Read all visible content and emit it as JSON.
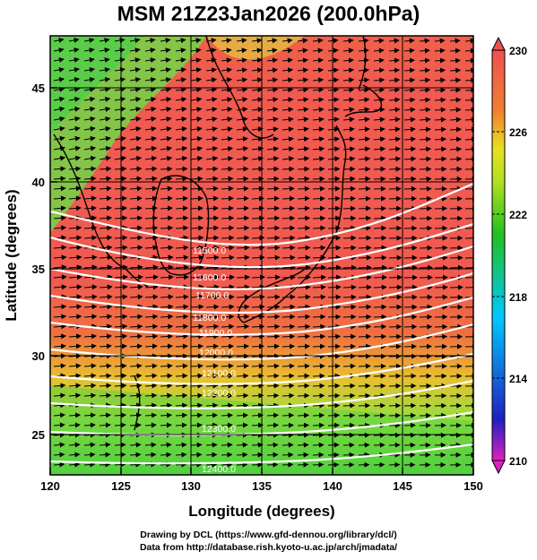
{
  "title": "MSM 21Z23Jan2026 (200.0hPa)",
  "x_axis": {
    "label": "Longitude (degrees)",
    "range": [
      120,
      150
    ],
    "ticks": [
      "120",
      "125",
      "130",
      "135",
      "140",
      "145",
      "150"
    ]
  },
  "y_axis": {
    "label": "Latitude  (degrees)",
    "range": [
      22.5,
      47.5
    ],
    "ticks": [
      "25",
      "30",
      "35",
      "40",
      "45"
    ]
  },
  "colorbar": {
    "labels": [
      "210",
      "214",
      "218",
      "222",
      "226",
      "230"
    ],
    "range": [
      210,
      230
    ],
    "colors": [
      "#e020c0",
      "#2020c0",
      "#00c8ff",
      "#20c020",
      "#b0e020",
      "#e8e020",
      "#f08030",
      "#f05050"
    ]
  },
  "contours": {
    "color": "#ffffff",
    "labels": [
      "11500.0",
      "11600.0",
      "11700.0",
      "11800.0",
      "11900.0",
      "12000.0",
      "12100.0",
      "12200.0",
      "12300.0",
      "12400.0"
    ]
  },
  "credits": [
    "Drawing by DCL (https://www.gfd-dennou.org/library/dcl/)",
    "Data from http://database.rish.kyoto-u.ac.jp/arch/jmadata/"
  ]
}
